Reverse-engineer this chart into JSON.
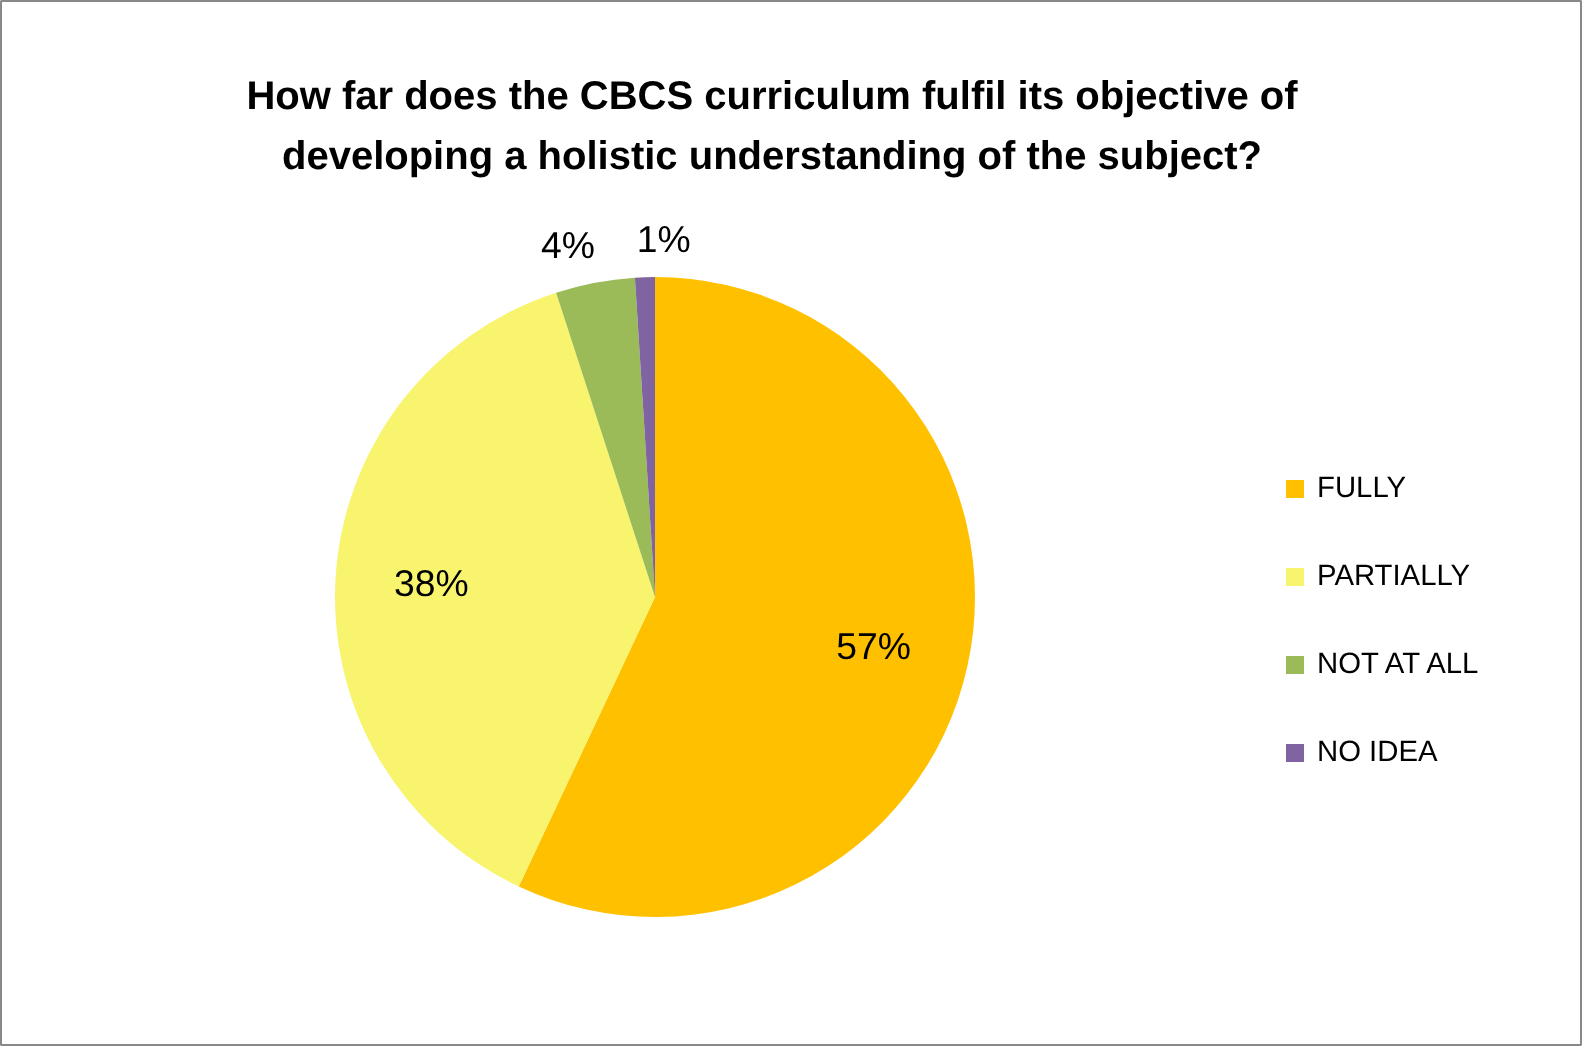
{
  "chart_data": {
    "type": "pie",
    "title": "How far does the CBCS curriculum fulfil its objective of developing a holistic understanding of the subject?",
    "categories": [
      "FULLY",
      "PARTIALLY",
      "NOT AT ALL",
      "NO IDEA"
    ],
    "values": [
      57,
      38,
      4,
      1
    ],
    "colors": [
      "#ffc000",
      "#f8f46e",
      "#9bbb59",
      "#8064a2"
    ],
    "value_labels": [
      "57%",
      "38%",
      "4%",
      "1%"
    ],
    "legend": "right"
  }
}
